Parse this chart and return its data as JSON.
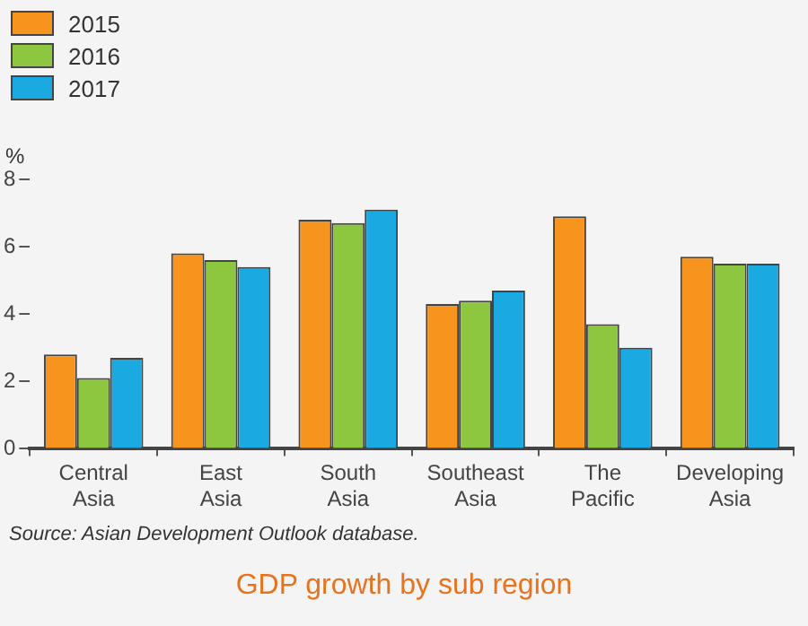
{
  "chart_data": {
    "type": "bar",
    "title": "GDP  growth by sub region",
    "ylabel": "%",
    "categories": [
      "Central\nAsia",
      "East\nAsia",
      "South\nAsia",
      "Southeast\nAsia",
      "The\nPacific",
      "Developing\nAsia"
    ],
    "series": [
      {
        "name": "2015",
        "color": "#f7941d",
        "values": [
          2.8,
          5.8,
          6.8,
          4.3,
          6.9,
          5.7
        ]
      },
      {
        "name": "2016",
        "color": "#8dc63f",
        "values": [
          2.1,
          5.6,
          6.7,
          4.4,
          3.7,
          5.5
        ]
      },
      {
        "name": "2017",
        "color": "#1ba9e1",
        "values": [
          2.7,
          5.4,
          7.1,
          4.7,
          3.0,
          5.5
        ]
      }
    ],
    "ylim": [
      0,
      8
    ],
    "yticks": [
      0,
      2,
      4,
      6,
      8
    ],
    "grid": false,
    "legend": "top left",
    "annotations": [
      "Source: Asian Development Outlook database."
    ]
  }
}
